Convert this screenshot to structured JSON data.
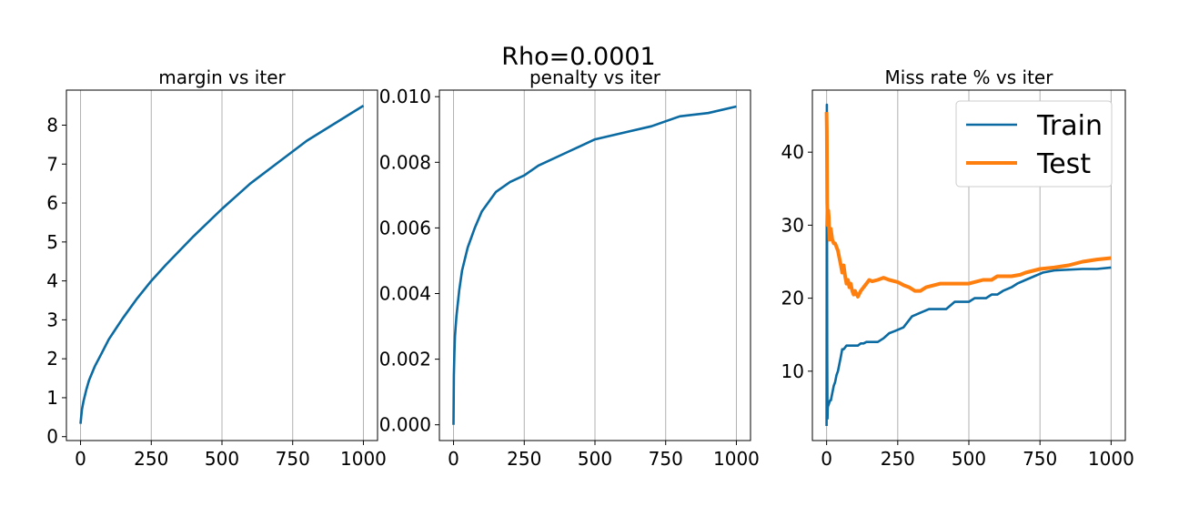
{
  "figure": {
    "suptitle": "Rho=0.0001"
  },
  "colors": {
    "train": "#0a6aa1",
    "test": "#ff7f0e",
    "grid": "#b0b0b0",
    "axis": "#000000"
  },
  "chart_data": [
    {
      "type": "line",
      "title": "margin vs iter",
      "xlabel": "",
      "ylabel": "",
      "xlim": [
        -50,
        1050
      ],
      "ylim": [
        -0.1,
        8.9
      ],
      "xticks": [
        0,
        250,
        500,
        750,
        1000
      ],
      "xtick_labels": [
        "0",
        "250",
        "500",
        "750",
        "1000"
      ],
      "yticks": [
        0,
        1,
        2,
        3,
        4,
        5,
        6,
        7,
        8
      ],
      "ytick_labels": [
        "0",
        "1",
        "2",
        "3",
        "4",
        "5",
        "6",
        "7",
        "8"
      ],
      "grid": "x",
      "series": [
        {
          "color": "#0a6aa1",
          "x": [
            0,
            2,
            5,
            10,
            20,
            30,
            50,
            75,
            100,
            150,
            200,
            250,
            300,
            400,
            500,
            600,
            700,
            800,
            900,
            1000
          ],
          "y": [
            0.33,
            0.5,
            0.7,
            0.9,
            1.2,
            1.45,
            1.8,
            2.15,
            2.5,
            3.05,
            3.55,
            4.0,
            4.4,
            5.15,
            5.85,
            6.5,
            7.05,
            7.6,
            8.05,
            8.5
          ]
        }
      ]
    },
    {
      "type": "line",
      "title": "penalty vs iter",
      "xlabel": "",
      "ylabel": "",
      "xlim": [
        -50,
        1050
      ],
      "ylim": [
        -0.00048,
        0.0102
      ],
      "xticks": [
        0,
        250,
        500,
        750,
        1000
      ],
      "xtick_labels": [
        "0",
        "250",
        "500",
        "750",
        "1000"
      ],
      "yticks": [
        0,
        0.002,
        0.004,
        0.006,
        0.008,
        0.01
      ],
      "ytick_labels": [
        "0.000",
        "0.002",
        "0.004",
        "0.006",
        "0.008",
        "0.010"
      ],
      "grid": "x",
      "series": [
        {
          "color": "#0a6aa1",
          "x": [
            0,
            1,
            3,
            5,
            10,
            20,
            30,
            50,
            75,
            100,
            150,
            200,
            250,
            300,
            400,
            500,
            600,
            700,
            800,
            900,
            1000
          ],
          "y": [
            0.0,
            0.0015,
            0.0022,
            0.0027,
            0.0033,
            0.0041,
            0.0047,
            0.0054,
            0.006,
            0.0065,
            0.0071,
            0.0074,
            0.0076,
            0.0079,
            0.0083,
            0.0087,
            0.0089,
            0.0091,
            0.0094,
            0.0095,
            0.0097
          ]
        }
      ]
    },
    {
      "type": "line",
      "title": "Miss rate % vs iter",
      "xlabel": "",
      "ylabel": "",
      "xlim": [
        -50,
        1050
      ],
      "ylim": [
        0.5,
        48.5
      ],
      "xticks": [
        0,
        250,
        500,
        750,
        1000
      ],
      "xtick_labels": [
        "0",
        "250",
        "500",
        "750",
        "1000"
      ],
      "yticks": [
        10,
        20,
        30,
        40
      ],
      "ytick_labels": [
        "10",
        "20",
        "30",
        "40"
      ],
      "grid": "x",
      "legend": {
        "position": "top-right"
      },
      "series": [
        {
          "name": "Train",
          "color": "#0a6aa1",
          "x": [
            0,
            1,
            2,
            3,
            4,
            5,
            8,
            12,
            15,
            20,
            25,
            30,
            35,
            40,
            45,
            50,
            55,
            60,
            70,
            80,
            90,
            100,
            110,
            120,
            130,
            140,
            160,
            180,
            200,
            220,
            240,
            270,
            300,
            330,
            360,
            400,
            420,
            450,
            500,
            520,
            560,
            580,
            600,
            620,
            650,
            670,
            700,
            730,
            760,
            800,
            900,
            950,
            1000
          ],
          "y": [
            2.5,
            46.5,
            12.0,
            3.5,
            5.0,
            5.2,
            5.5,
            6.0,
            6.0,
            7.0,
            8.0,
            8.5,
            9.5,
            10.0,
            11.0,
            12.0,
            13.0,
            13.0,
            13.5,
            13.5,
            13.5,
            13.5,
            13.5,
            13.8,
            13.8,
            14.0,
            14.0,
            14.0,
            14.5,
            15.2,
            15.5,
            16.0,
            17.5,
            18.0,
            18.5,
            18.5,
            18.5,
            19.5,
            19.5,
            20.0,
            20.0,
            20.5,
            20.5,
            21.0,
            21.5,
            22.0,
            22.5,
            23.0,
            23.5,
            23.8,
            24.0,
            24.0,
            24.2
          ]
        },
        {
          "name": "Test",
          "color": "#ff7f0e",
          "x": [
            0,
            1,
            2,
            4,
            6,
            8,
            10,
            15,
            20,
            25,
            30,
            40,
            50,
            55,
            60,
            65,
            70,
            75,
            80,
            85,
            90,
            95,
            100,
            110,
            120,
            130,
            140,
            150,
            160,
            180,
            200,
            220,
            250,
            270,
            290,
            310,
            330,
            350,
            400,
            420,
            450,
            500,
            550,
            580,
            600,
            650,
            680,
            700,
            750,
            800,
            850,
            900,
            950,
            1000
          ],
          "y": [
            45.5,
            43.0,
            33.0,
            30.0,
            32.0,
            31.0,
            28.0,
            29.5,
            28.0,
            27.5,
            27.5,
            26.5,
            24.5,
            23.5,
            24.5,
            23.0,
            22.0,
            22.5,
            21.5,
            22.0,
            21.0,
            20.5,
            21.0,
            20.2,
            21.0,
            21.5,
            22.0,
            22.5,
            22.3,
            22.5,
            22.8,
            22.5,
            22.2,
            21.8,
            21.5,
            21.0,
            21.0,
            21.5,
            22.0,
            22.0,
            22.0,
            22.0,
            22.5,
            22.5,
            23.0,
            23.0,
            23.2,
            23.5,
            24.0,
            24.2,
            24.5,
            25.0,
            25.3,
            25.5
          ]
        }
      ]
    }
  ]
}
